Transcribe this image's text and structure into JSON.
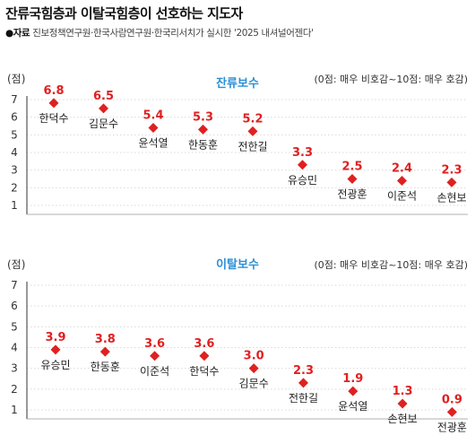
{
  "header": {
    "title": "잔류국힘층과 이탈국힘층이 선호하는 지도자",
    "source_label": "●자료",
    "source_text": "진보정책연구원·한국사람연구원·한국리서치가 실시한 '2025 내셔널어젠다'"
  },
  "colors": {
    "accent": "#e02020",
    "title_blue": "#2a8fd6",
    "axis": "#333333",
    "grid": "#d9d9d9"
  },
  "chart_data": [
    {
      "type": "scatter",
      "title": "잔류보수",
      "ylabel": "(점)",
      "note": "(0점: 매우 비호감~10점: 매우 호감)",
      "ylim": [
        1,
        7
      ],
      "yticks": [
        "1",
        "2",
        "3",
        "4",
        "5",
        "6",
        "7"
      ],
      "categories": [
        "한덕수",
        "김문수",
        "윤석열",
        "한동훈",
        "전한길",
        "유승민",
        "전광훈",
        "이준석",
        "손현보"
      ],
      "values": [
        6.8,
        6.5,
        5.4,
        5.3,
        5.2,
        3.3,
        2.5,
        2.4,
        2.3
      ],
      "value_labels": [
        "6.8",
        "6.5",
        "5.4",
        "5.3",
        "5.2",
        "3.3",
        "2.5",
        "2.4",
        "2.3"
      ]
    },
    {
      "type": "scatter",
      "title": "이탈보수",
      "ylabel": "(점)",
      "note": "(0점: 매우 비호감~10점: 매우 호감)",
      "ylim": [
        1,
        7
      ],
      "yticks": [
        "1",
        "2",
        "3",
        "4",
        "5",
        "6",
        "7"
      ],
      "categories": [
        "유승민",
        "한동훈",
        "이준석",
        "한덕수",
        "김문수",
        "전한길",
        "윤석열",
        "손현보",
        "전광훈"
      ],
      "values": [
        3.9,
        3.8,
        3.6,
        3.6,
        3.0,
        2.3,
        1.9,
        1.3,
        0.9
      ],
      "value_labels": [
        "3.9",
        "3.8",
        "3.6",
        "3.6",
        "3.0",
        "2.3",
        "1.9",
        "1.3",
        "0.9"
      ]
    }
  ]
}
